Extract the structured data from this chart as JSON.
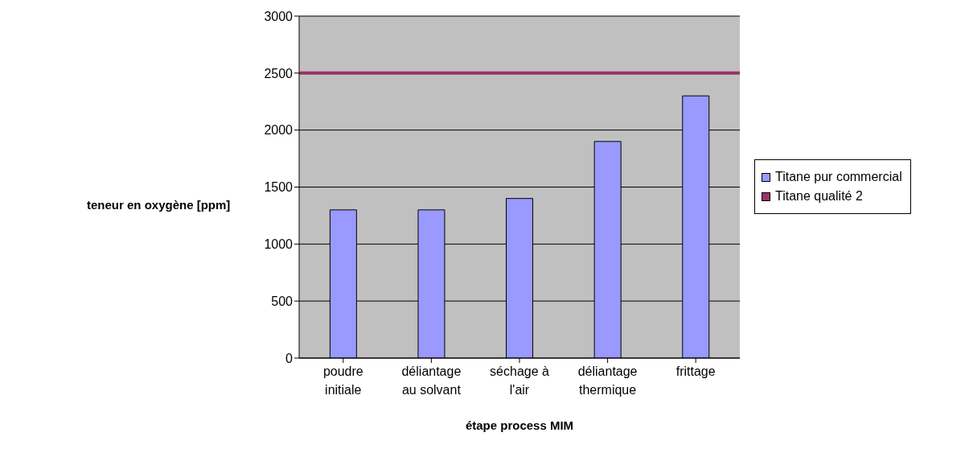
{
  "chart_data": {
    "type": "bar",
    "xlabel": "étape process MIM",
    "ylabel": "teneur en oxygène [ppm]",
    "categories": [
      "poudre initiale",
      "déliantage au solvant",
      "séchage à l'air",
      "déliantage thermique",
      "frittage"
    ],
    "series": [
      {
        "name": "Titane pur commercial",
        "color": "#9999ff",
        "values": [
          1300,
          1300,
          1400,
          1900,
          2300
        ]
      }
    ],
    "ref_lines": [
      {
        "axis": "y",
        "value": 2500,
        "label": "Titane qualité 2",
        "color": "#993366"
      }
    ],
    "ylim": [
      0,
      3000
    ],
    "yticks": [
      0,
      500,
      1000,
      1500,
      2000,
      2500,
      3000
    ],
    "grid": "y",
    "legend": "right"
  }
}
